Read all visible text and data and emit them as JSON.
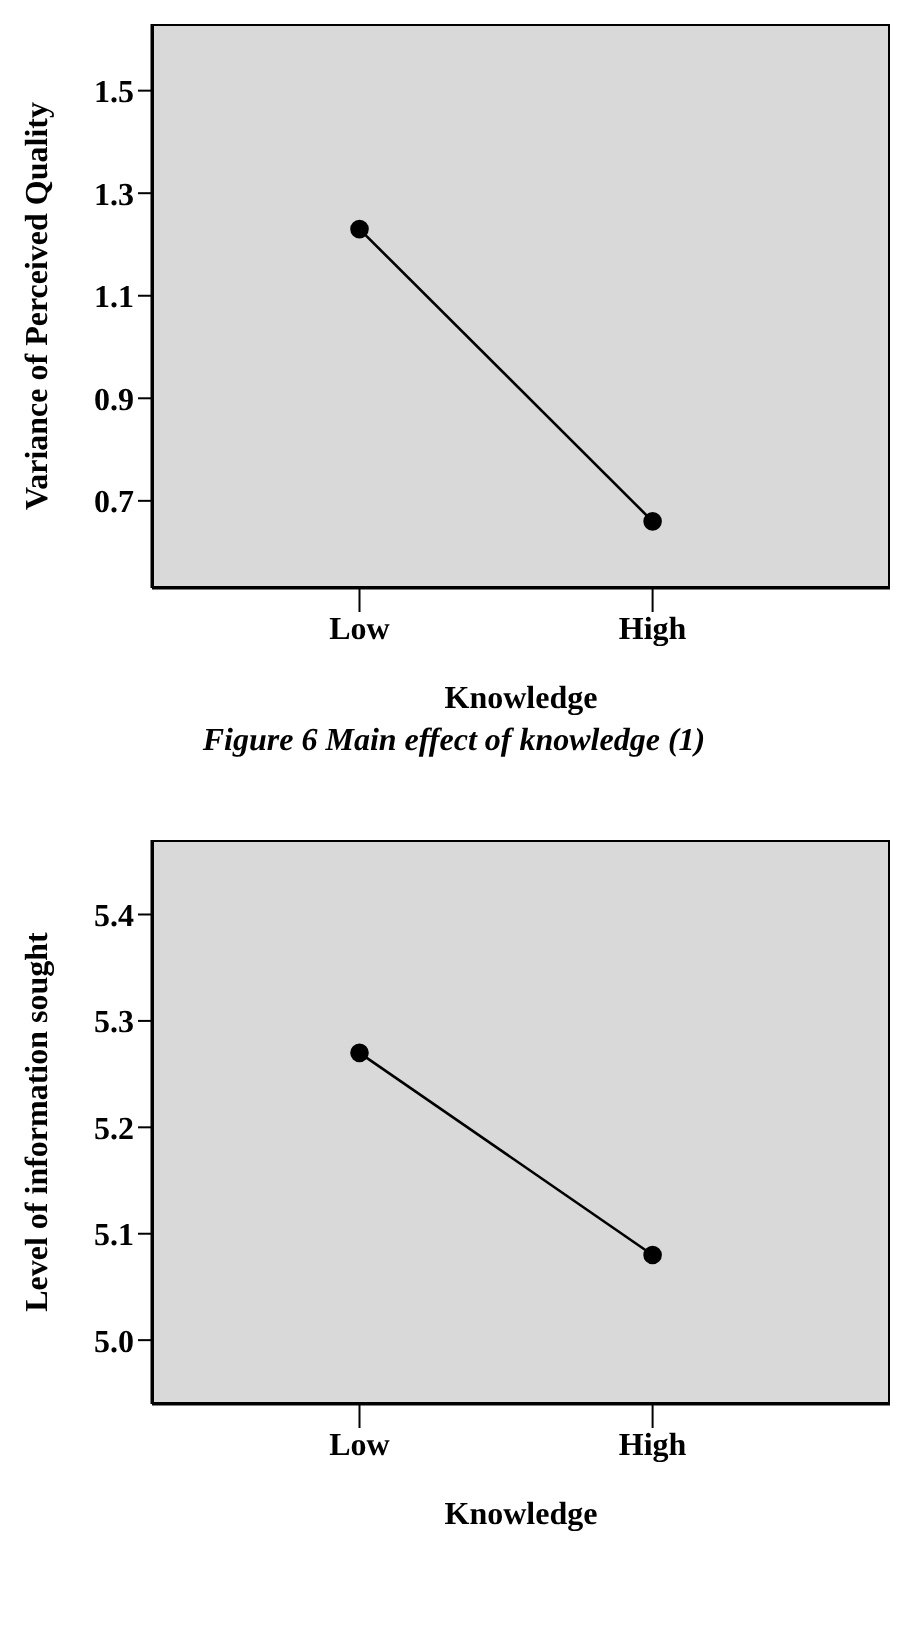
{
  "chart_data": [
    {
      "type": "line",
      "xlabel": "Knowledge",
      "ylabel": "Variance of Perceived Quality",
      "categories": [
        "Low",
        "High"
      ],
      "values": [
        1.23,
        0.66
      ],
      "color": "#000000",
      "ylim": [
        0.53,
        1.63
      ],
      "yticks": [
        {
          "value": 0.7,
          "label": "0.7"
        },
        {
          "value": 0.9,
          "label": "0.9"
        },
        {
          "value": 1.1,
          "label": "1.1"
        },
        {
          "value": 1.3,
          "label": "1.3"
        },
        {
          "value": 1.5,
          "label": "1.5"
        }
      ],
      "marker": "circle",
      "grid": false,
      "annotations": [
        "Figure 6 Main effect of knowledge (1)"
      ]
    },
    {
      "type": "line",
      "xlabel": "Knowledge",
      "ylabel": "Level of information sought",
      "categories": [
        "Low",
        "High"
      ],
      "values": [
        5.27,
        5.08
      ],
      "color": "#000000",
      "ylim": [
        4.94,
        5.47
      ],
      "yticks": [
        {
          "value": 5.0,
          "label": "5.0"
        },
        {
          "value": 5.1,
          "label": "5.1"
        },
        {
          "value": 5.2,
          "label": "5.2"
        },
        {
          "value": 5.3,
          "label": "5.3"
        },
        {
          "value": 5.4,
          "label": "5.4"
        }
      ],
      "marker": "circle",
      "grid": false
    }
  ]
}
